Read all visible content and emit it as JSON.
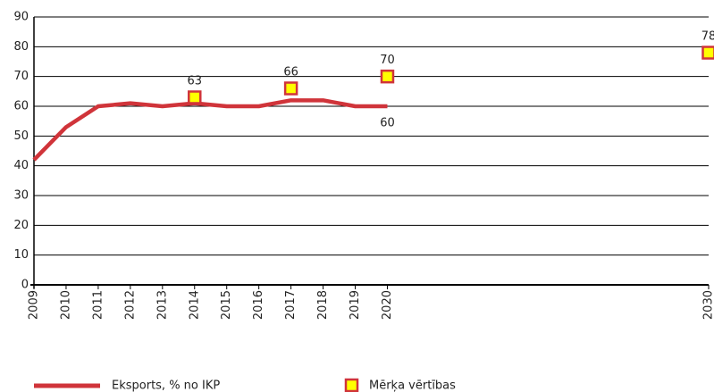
{
  "chart_data": {
    "type": "line",
    "xlim": [
      2009,
      2030
    ],
    "xticks": [
      2009,
      2010,
      2011,
      2012,
      2013,
      2014,
      2015,
      2016,
      2017,
      2018,
      2019,
      2020,
      2030
    ],
    "ylim": [
      0,
      90
    ],
    "yticks": [
      0,
      10,
      20,
      30,
      40,
      50,
      60,
      70,
      80,
      90
    ],
    "grid": true,
    "series": [
      {
        "name": "Eksports, % no IKP",
        "color": "#d0343a",
        "marker": "none",
        "x": [
          2009,
          2010,
          2011,
          2012,
          2013,
          2014,
          2015,
          2016,
          2017,
          2018,
          2019,
          2020
        ],
        "values": [
          42,
          53,
          60,
          61,
          60,
          61,
          60,
          60,
          62,
          62,
          60,
          60
        ],
        "value_labels": [
          null,
          null,
          null,
          null,
          null,
          null,
          null,
          null,
          null,
          null,
          null,
          "60"
        ]
      },
      {
        "name": "Mērķa vērtības",
        "color": "#d0343a",
        "fill": "#ffff00",
        "marker": "square",
        "x": [
          2014,
          2017,
          2020,
          2030
        ],
        "values": [
          63,
          66,
          70,
          78
        ],
        "value_labels": [
          "63",
          "66",
          "70",
          "78"
        ]
      }
    ]
  }
}
